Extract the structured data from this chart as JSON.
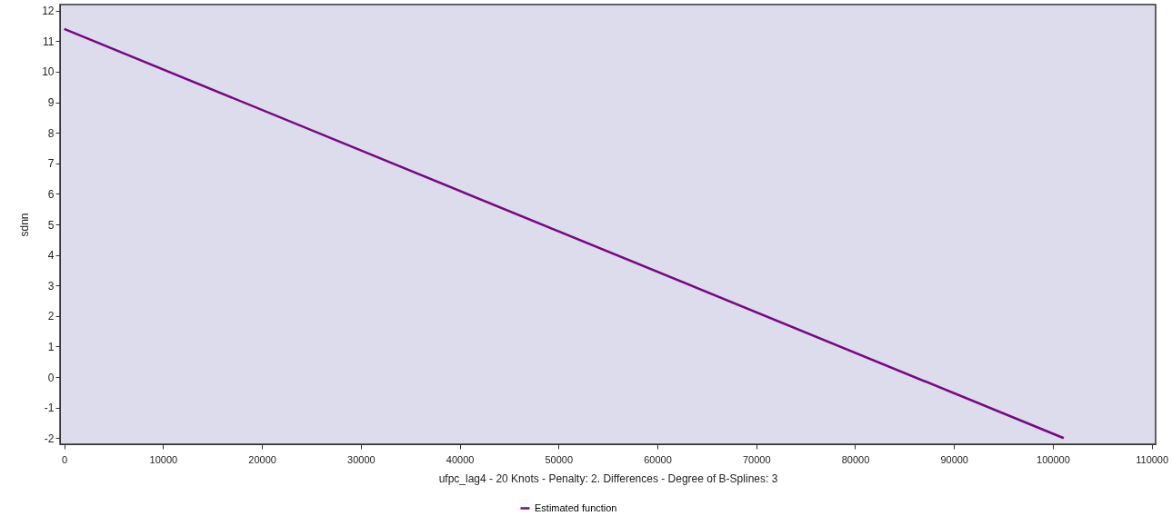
{
  "chart_data": {
    "type": "line",
    "xlabel": "ufpc_lag4 - 20 Knots - Penalty: 2. Differences - Degree of B-Splines: 3",
    "ylabel": "sdnn",
    "x": [
      0,
      101100
    ],
    "series": [
      {
        "name": "Estimated function",
        "color": "#730a80",
        "values": [
          11.4,
          -2.0
        ]
      }
    ],
    "xlim": [
      -430,
      110400
    ],
    "xticks": [
      0,
      10000,
      20000,
      30000,
      40000,
      50000,
      60000,
      70000,
      80000,
      90000,
      100000,
      110000
    ],
    "ylim": [
      -2.2,
      12.2
    ],
    "yticks": [
      -2,
      -1,
      0,
      1,
      2,
      3,
      4,
      5,
      6,
      7,
      8,
      9,
      10,
      11,
      12
    ],
    "grid": false,
    "legend": "bottom",
    "marker": "none",
    "line_style": "solid"
  }
}
